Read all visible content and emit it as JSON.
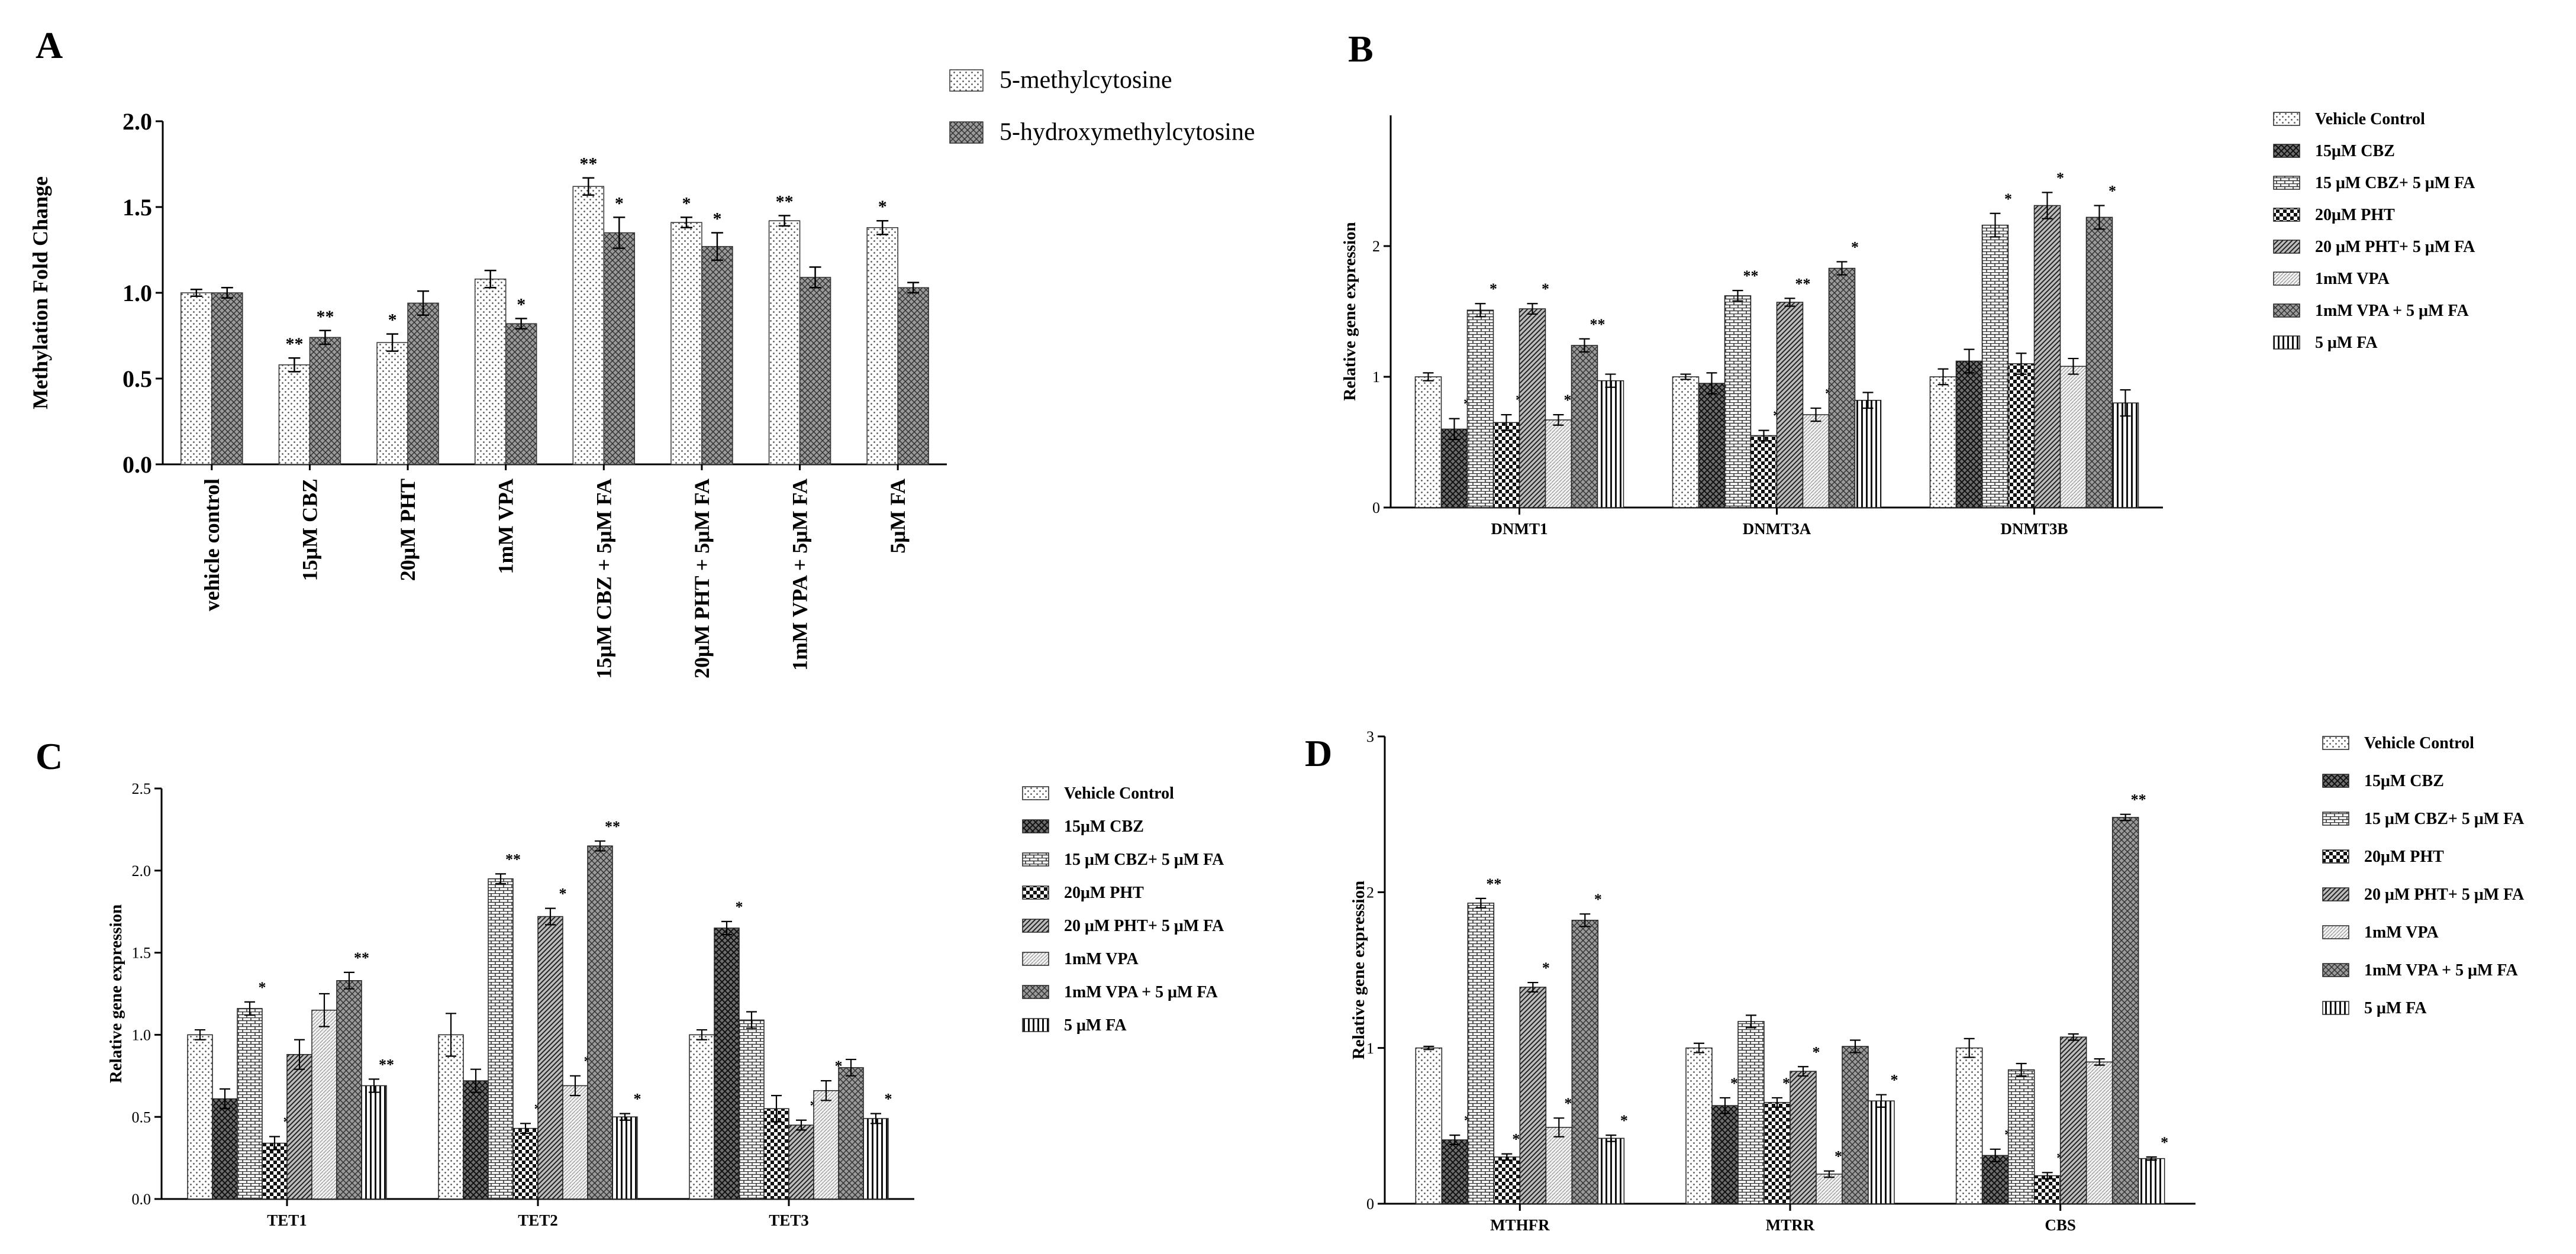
{
  "panel_letters": [
    "A",
    "B",
    "C",
    "D"
  ],
  "patterns": [
    "dots",
    "cross",
    "hbrick",
    "check",
    "diag",
    "fine",
    "weave",
    "vbars"
  ],
  "chart_data": [
    {
      "panel": "A",
      "type": "bar",
      "ylabel": "Methylation Fold Change",
      "ylim": [
        0,
        2
      ],
      "yticks": [
        "0.0",
        "0.5",
        "1.0",
        "1.5",
        "2.0"
      ],
      "ytick_values": [
        0,
        0.5,
        1,
        1.5,
        2
      ],
      "categories": [
        "vehicle control",
        "15μM CBZ",
        "20μM PHT",
        "1mM VPA",
        "15μM CBZ + 5μM FA",
        "20μM PHT + 5μM FA",
        "1mM VPA + 5μM FA",
        "5μM FA"
      ],
      "legend": [
        "5-methylcytosine",
        "5-hydroxymethylcytosine"
      ],
      "series": [
        {
          "name": "5-methylcytosine",
          "pattern": "dots",
          "values": [
            1.0,
            0.58,
            0.71,
            1.08,
            1.62,
            1.41,
            1.42,
            1.38
          ],
          "errors": [
            0.02,
            0.04,
            0.05,
            0.05,
            0.05,
            0.03,
            0.03,
            0.04
          ],
          "stars": [
            "",
            "**",
            "*",
            "",
            "**",
            "*",
            "**",
            "*"
          ]
        },
        {
          "name": "5-hydroxymethylcytosine",
          "pattern": "weave",
          "values": [
            1.0,
            0.74,
            0.94,
            0.82,
            1.35,
            1.27,
            1.09,
            1.03
          ],
          "errors": [
            0.03,
            0.04,
            0.07,
            0.03,
            0.09,
            0.08,
            0.06,
            0.03
          ],
          "stars": [
            "",
            "**",
            "",
            "*",
            "*",
            "*",
            "",
            ""
          ]
        }
      ]
    },
    {
      "panel": "B",
      "type": "bar",
      "ylabel": "Relative gene expression",
      "ylim": [
        0,
        3
      ],
      "yticks": [
        "0",
        "1",
        "2"
      ],
      "ytick_values": [
        0,
        1,
        2
      ],
      "categories": [
        "DNMT1",
        "DNMT3A",
        "DNMT3B"
      ],
      "legend": [
        "Vehicle Control",
        "15μM CBZ",
        "15 μM CBZ+ 5 μM FA",
        "20μM PHT",
        "20 μM PHT+ 5 μM FA",
        "1mM VPA",
        "1mM VPA + 5 μM FA",
        "5 μM FA"
      ],
      "values": [
        [
          1.0,
          0.6,
          1.51,
          0.65,
          1.52,
          0.67,
          1.24,
          0.97
        ],
        [
          1.0,
          0.95,
          1.62,
          0.55,
          1.57,
          0.71,
          1.83,
          0.82
        ],
        [
          1.0,
          1.12,
          2.16,
          1.1,
          2.31,
          1.08,
          2.22,
          0.8
        ]
      ],
      "errors": [
        [
          0.03,
          0.08,
          0.05,
          0.06,
          0.04,
          0.04,
          0.05,
          0.05
        ],
        [
          0.02,
          0.08,
          0.04,
          0.04,
          0.03,
          0.05,
          0.05,
          0.06
        ],
        [
          0.06,
          0.09,
          0.09,
          0.08,
          0.1,
          0.06,
          0.09,
          0.1
        ]
      ],
      "stars": [
        [
          "",
          "*",
          "*",
          "*",
          "*",
          "**",
          "**",
          ""
        ],
        [
          "",
          "",
          "**",
          "*",
          "**",
          "*",
          "*",
          ""
        ],
        [
          "",
          "",
          "*",
          "",
          "*",
          "",
          "*",
          ""
        ]
      ]
    },
    {
      "panel": "C",
      "type": "bar",
      "ylabel": "Relative gene expression",
      "ylim": [
        0,
        2.5
      ],
      "yticks": [
        "0.0",
        "0.5",
        "1.0",
        "1.5",
        "2.0",
        "2.5"
      ],
      "ytick_values": [
        0,
        0.5,
        1,
        1.5,
        2,
        2.5
      ],
      "categories": [
        "TET1",
        "TET2",
        "TET3"
      ],
      "legend": [
        "Vehicle Control",
        "15μM CBZ",
        "15 μM CBZ+ 5 μM FA",
        "20μM PHT",
        "20 μM PHT+ 5 μM FA",
        "1mM VPA",
        "1mM VPA + 5 μM FA",
        "5 μM FA"
      ],
      "values": [
        [
          1.0,
          0.61,
          1.16,
          0.34,
          0.88,
          1.15,
          1.33,
          0.69
        ],
        [
          1.0,
          0.72,
          1.95,
          0.43,
          1.72,
          0.69,
          2.15,
          0.5
        ],
        [
          1.0,
          1.65,
          1.09,
          0.55,
          0.45,
          0.66,
          0.8,
          0.49
        ]
      ],
      "errors": [
        [
          0.03,
          0.06,
          0.04,
          0.04,
          0.09,
          0.1,
          0.05,
          0.04
        ],
        [
          0.13,
          0.07,
          0.03,
          0.03,
          0.05,
          0.06,
          0.03,
          0.02
        ],
        [
          0.03,
          0.04,
          0.05,
          0.08,
          0.03,
          0.06,
          0.05,
          0.03
        ]
      ],
      "stars": [
        [
          "",
          "",
          "*",
          "*",
          "",
          "",
          "**",
          "**"
        ],
        [
          "",
          "",
          "**",
          "*",
          "*",
          "*",
          "**",
          "*"
        ],
        [
          "",
          "*",
          "",
          "",
          "*",
          "*",
          "",
          "*"
        ]
      ]
    },
    {
      "panel": "D",
      "type": "bar",
      "ylabel": "Relative gene expression",
      "ylim": [
        0,
        3
      ],
      "yticks": [
        "0",
        "1",
        "2",
        "3"
      ],
      "ytick_values": [
        0,
        1,
        2,
        3
      ],
      "categories": [
        "MTHFR",
        "MTRR",
        "CBS"
      ],
      "legend": [
        "Vehicle Control",
        "15μM CBZ",
        "15 μM CBZ+ 5 μM FA",
        "20μM PHT",
        "20 μM PHT+ 5 μM FA",
        "1mM VPA",
        "1mM VPA + 5 μM FA",
        "5 μM FA"
      ],
      "values": [
        [
          1.0,
          0.41,
          1.93,
          0.3,
          1.39,
          0.49,
          1.82,
          0.42
        ],
        [
          1.0,
          0.63,
          1.17,
          0.65,
          0.85,
          0.19,
          1.01,
          0.66
        ],
        [
          1.0,
          0.31,
          0.86,
          0.18,
          1.07,
          0.91,
          2.48,
          0.29
        ]
      ],
      "errors": [
        [
          0.01,
          0.03,
          0.03,
          0.02,
          0.03,
          0.06,
          0.04,
          0.02
        ],
        [
          0.03,
          0.05,
          0.04,
          0.03,
          0.03,
          0.02,
          0.04,
          0.04
        ],
        [
          0.06,
          0.04,
          0.04,
          0.02,
          0.02,
          0.02,
          0.02,
          0.01
        ]
      ],
      "stars": [
        [
          "",
          "*",
          "**",
          "**",
          "*",
          "**",
          "*",
          "*"
        ],
        [
          "",
          "**",
          "",
          "**",
          "*",
          "**",
          "",
          "*"
        ],
        [
          "",
          "*",
          "",
          "*",
          "",
          "",
          "**",
          "*"
        ]
      ]
    }
  ]
}
